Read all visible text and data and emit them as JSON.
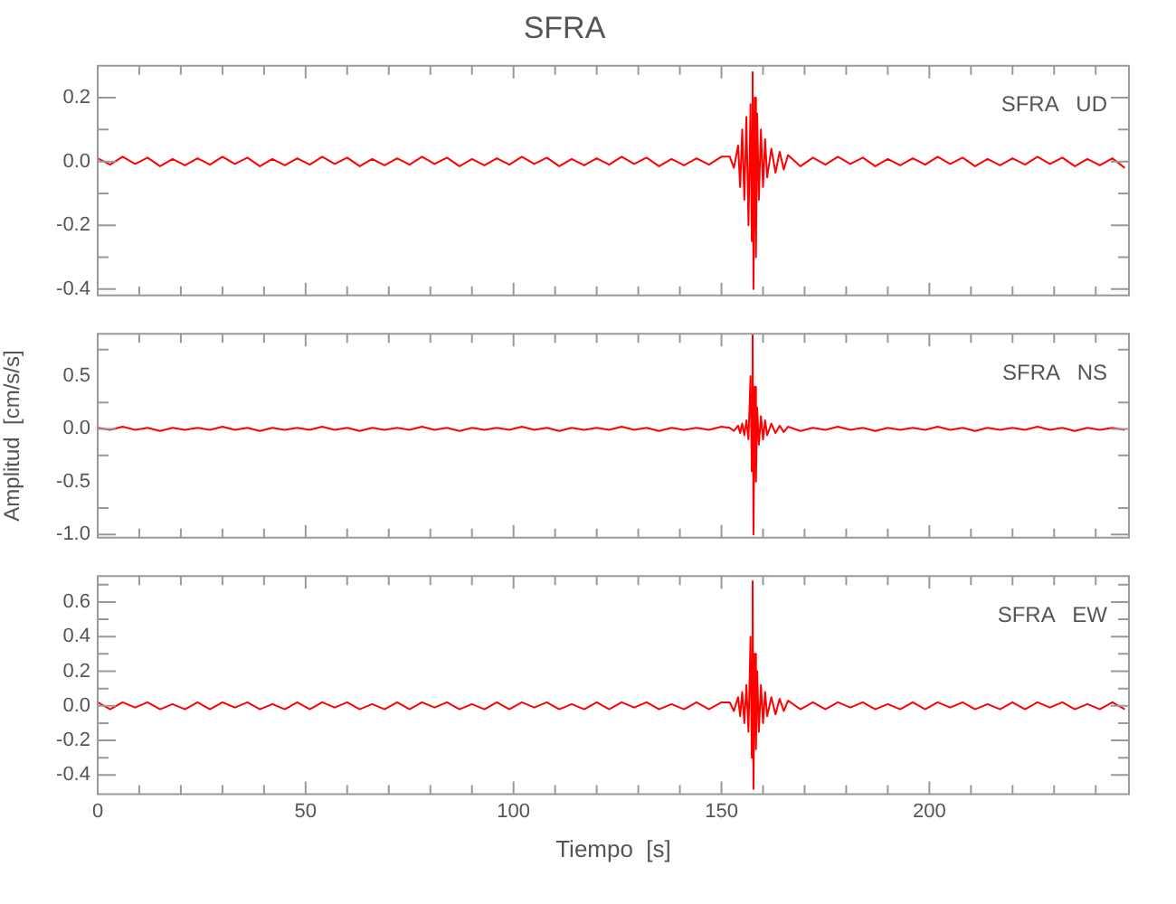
{
  "chart_data": [
    {
      "type": "line",
      "title": "SFRA",
      "annotations": [
        "SFRA   UD"
      ],
      "xlim": [
        0,
        248
      ],
      "ylim": [
        -0.42,
        0.3
      ],
      "xticks": [
        0,
        {
          "value": 10,
          "label": null
        },
        {
          "value": 20,
          "label": null
        },
        {
          "value": 30,
          "label": null
        },
        {
          "value": 40,
          "label": null
        },
        50,
        {
          "value": 60,
          "label": null
        },
        {
          "value": 70,
          "label": null
        },
        {
          "value": 80,
          "label": null
        },
        {
          "value": 90,
          "label": null
        },
        100,
        {
          "value": 110,
          "label": null
        },
        {
          "value": 120,
          "label": null
        },
        {
          "value": 130,
          "label": null
        },
        {
          "value": 140,
          "label": null
        },
        150,
        {
          "value": 160,
          "label": null
        },
        {
          "value": 170,
          "label": null
        },
        {
          "value": 180,
          "label": null
        },
        {
          "value": 190,
          "label": null
        },
        200,
        {
          "value": 210,
          "label": null
        },
        {
          "value": 220,
          "label": null
        },
        {
          "value": 230,
          "label": null
        },
        {
          "value": 240,
          "label": null
        }
      ],
      "yticks": [
        -0.4,
        {
          "value": -0.3,
          "label": null
        },
        -0.2,
        {
          "value": -0.1,
          "label": null
        },
        {
          "value": 0,
          "label": "0.0"
        },
        {
          "value": 0.1,
          "label": null
        },
        0.2
      ],
      "tick_labels": "y",
      "marker": "none",
      "x": [
        0,
        3,
        6,
        9,
        12,
        15,
        18,
        21,
        24,
        27,
        30,
        33,
        36,
        39,
        42,
        45,
        48,
        51,
        54,
        57,
        60,
        63,
        66,
        69,
        72,
        75,
        78,
        81,
        84,
        87,
        90,
        93,
        96,
        99,
        102,
        105,
        108,
        111,
        114,
        117,
        120,
        123,
        126,
        129,
        132,
        135,
        138,
        141,
        144,
        147,
        150,
        152,
        153,
        154,
        154.5,
        155,
        155.5,
        156,
        156.5,
        157,
        157.3,
        157.5,
        157.7,
        158,
        158.3,
        158.6,
        159,
        159.5,
        160,
        160.5,
        161,
        162,
        163,
        164,
        165,
        166,
        169,
        172,
        175,
        178,
        181,
        184,
        187,
        190,
        193,
        196,
        199,
        202,
        205,
        208,
        211,
        214,
        217,
        220,
        223,
        226,
        229,
        232,
        235,
        238,
        241,
        244,
        247
      ],
      "series": [
        {
          "color": "#ff0000",
          "values": [
            0.01,
            -0.01,
            0.015,
            -0.008,
            0.012,
            -0.015,
            0.008,
            -0.012,
            0.01,
            -0.01,
            0.015,
            -0.008,
            0.012,
            -0.015,
            0.008,
            -0.012,
            0.01,
            -0.01,
            0.015,
            -0.008,
            0.012,
            -0.015,
            0.008,
            -0.012,
            0.01,
            -0.01,
            0.015,
            -0.008,
            0.012,
            -0.015,
            0.008,
            -0.012,
            0.01,
            -0.01,
            0.015,
            -0.008,
            0.012,
            -0.015,
            0.008,
            -0.012,
            0.01,
            -0.01,
            0.015,
            -0.008,
            0.012,
            -0.015,
            0.008,
            -0.012,
            0.01,
            -0.01,
            0.015,
            0.015,
            -0.02,
            0.05,
            -0.08,
            0.1,
            -0.12,
            0.14,
            -0.2,
            0.18,
            -0.25,
            0.28,
            -0.4,
            0.2,
            -0.3,
            0.15,
            -0.12,
            0.1,
            -0.08,
            0.07,
            -0.05,
            0.04,
            -0.035,
            0.03,
            -0.025,
            0.02,
            -0.015,
            0.012,
            -0.01,
            0.015,
            -0.008,
            0.012,
            -0.015,
            0.008,
            -0.012,
            0.01,
            -0.01,
            0.015,
            -0.008,
            0.012,
            -0.015,
            0.008,
            -0.012,
            0.01,
            -0.01,
            0.015,
            -0.008,
            0.012,
            -0.015,
            0.008,
            -0.012,
            0.01,
            -0.02
          ]
        }
      ]
    },
    {
      "type": "line",
      "ylabel": "Amplitud  [cm/s/s]",
      "annotations": [
        "SFRA   NS"
      ],
      "xlim": [
        0,
        248
      ],
      "ylim": [
        -1.03,
        0.9
      ],
      "xticks": [
        0,
        {
          "value": 10,
          "label": null
        },
        {
          "value": 20,
          "label": null
        },
        {
          "value": 30,
          "label": null
        },
        {
          "value": 40,
          "label": null
        },
        50,
        {
          "value": 60,
          "label": null
        },
        {
          "value": 70,
          "label": null
        },
        {
          "value": 80,
          "label": null
        },
        {
          "value": 90,
          "label": null
        },
        100,
        {
          "value": 110,
          "label": null
        },
        {
          "value": 120,
          "label": null
        },
        {
          "value": 130,
          "label": null
        },
        {
          "value": 140,
          "label": null
        },
        150,
        {
          "value": 160,
          "label": null
        },
        {
          "value": 170,
          "label": null
        },
        {
          "value": 180,
          "label": null
        },
        {
          "value": 190,
          "label": null
        },
        200,
        {
          "value": 210,
          "label": null
        },
        {
          "value": 220,
          "label": null
        },
        {
          "value": 230,
          "label": null
        },
        {
          "value": 240,
          "label": null
        }
      ],
      "yticks": [
        {
          "value": -1,
          "label": "-1.0"
        },
        {
          "value": -0.75,
          "label": null
        },
        -0.5,
        {
          "value": -0.25,
          "label": null
        },
        {
          "value": 0,
          "label": "0.0"
        },
        {
          "value": 0.25,
          "label": null
        },
        0.5,
        {
          "value": 0.75,
          "label": null
        }
      ],
      "tick_labels": "y",
      "marker": "none",
      "x": [
        0,
        3,
        6,
        9,
        12,
        15,
        18,
        21,
        24,
        27,
        30,
        33,
        36,
        39,
        42,
        45,
        48,
        51,
        54,
        57,
        60,
        63,
        66,
        69,
        72,
        75,
        78,
        81,
        84,
        87,
        90,
        93,
        96,
        99,
        102,
        105,
        108,
        111,
        114,
        117,
        120,
        123,
        126,
        129,
        132,
        135,
        138,
        141,
        144,
        147,
        150,
        152,
        153,
        154,
        154.5,
        155,
        155.5,
        156,
        156.5,
        157,
        157.3,
        157.5,
        157.7,
        158,
        158.3,
        158.6,
        159,
        159.5,
        160,
        160.5,
        161,
        162,
        163,
        164,
        165,
        166,
        169,
        172,
        175,
        178,
        181,
        184,
        187,
        190,
        193,
        196,
        199,
        202,
        205,
        208,
        211,
        214,
        217,
        220,
        223,
        226,
        229,
        232,
        235,
        238,
        241,
        244,
        247
      ],
      "series": [
        {
          "color": "#ff0000",
          "values": [
            0.01,
            -0.01,
            0.02,
            -0.01,
            0.01,
            -0.02,
            0.01,
            -0.01,
            0.01,
            -0.01,
            0.02,
            -0.01,
            0.01,
            -0.02,
            0.01,
            -0.01,
            0.01,
            -0.01,
            0.02,
            -0.01,
            0.01,
            -0.02,
            0.01,
            -0.01,
            0.01,
            -0.01,
            0.02,
            -0.01,
            0.01,
            -0.02,
            0.01,
            -0.01,
            0.01,
            -0.01,
            0.02,
            -0.01,
            0.01,
            -0.02,
            0.01,
            -0.01,
            0.01,
            -0.01,
            0.02,
            -0.01,
            0.01,
            -0.02,
            0.01,
            -0.01,
            0.01,
            -0.01,
            0.02,
            0.01,
            -0.02,
            0.03,
            -0.04,
            0.05,
            -0.06,
            0.08,
            -0.1,
            0.5,
            -0.4,
            0.9,
            -1.0,
            0.4,
            -0.5,
            0.2,
            -0.15,
            0.12,
            -0.1,
            0.08,
            -0.06,
            0.05,
            -0.04,
            0.03,
            -0.03,
            0.02,
            -0.02,
            0.01,
            -0.01,
            0.02,
            -0.01,
            0.01,
            -0.02,
            0.01,
            -0.01,
            0.01,
            -0.01,
            0.02,
            -0.01,
            0.01,
            -0.02,
            0.01,
            -0.01,
            0.01,
            -0.01,
            0.02,
            -0.01,
            0.01,
            -0.02,
            0.01,
            -0.01,
            0.01,
            -0.01
          ]
        }
      ]
    },
    {
      "type": "line",
      "xlabel": "Tiempo  [s]",
      "annotations": [
        "SFRA   EW"
      ],
      "xlim": [
        0,
        248
      ],
      "ylim": [
        -0.51,
        0.75
      ],
      "xticks": [
        0,
        {
          "value": 10,
          "label": null
        },
        {
          "value": 20,
          "label": null
        },
        {
          "value": 30,
          "label": null
        },
        {
          "value": 40,
          "label": null
        },
        50,
        {
          "value": 60,
          "label": null
        },
        {
          "value": 70,
          "label": null
        },
        {
          "value": 80,
          "label": null
        },
        {
          "value": 90,
          "label": null
        },
        100,
        {
          "value": 110,
          "label": null
        },
        {
          "value": 120,
          "label": null
        },
        {
          "value": 130,
          "label": null
        },
        {
          "value": 140,
          "label": null
        },
        150,
        {
          "value": 160,
          "label": null
        },
        {
          "value": 170,
          "label": null
        },
        {
          "value": 180,
          "label": null
        },
        {
          "value": 190,
          "label": null
        },
        200,
        {
          "value": 210,
          "label": null
        },
        {
          "value": 220,
          "label": null
        },
        {
          "value": 230,
          "label": null
        },
        {
          "value": 240,
          "label": null
        }
      ],
      "yticks": [
        -0.4,
        {
          "value": -0.3,
          "label": null
        },
        -0.2,
        {
          "value": -0.1,
          "label": null
        },
        {
          "value": 0,
          "label": "0.0"
        },
        {
          "value": 0.1,
          "label": null
        },
        0.2,
        {
          "value": 0.3,
          "label": null
        },
        0.4,
        {
          "value": 0.5,
          "label": null
        },
        0.6,
        {
          "value": 0.7,
          "label": null
        }
      ],
      "marker": "none",
      "x": [
        0,
        3,
        6,
        9,
        12,
        15,
        18,
        21,
        24,
        27,
        30,
        33,
        36,
        39,
        42,
        45,
        48,
        51,
        54,
        57,
        60,
        63,
        66,
        69,
        72,
        75,
        78,
        81,
        84,
        87,
        90,
        93,
        96,
        99,
        102,
        105,
        108,
        111,
        114,
        117,
        120,
        123,
        126,
        129,
        132,
        135,
        138,
        141,
        144,
        147,
        150,
        152,
        153,
        154,
        154.5,
        155,
        155.5,
        156,
        156.5,
        157,
        157.3,
        157.5,
        157.7,
        158,
        158.3,
        158.6,
        159,
        159.5,
        160,
        160.5,
        161,
        162,
        163,
        164,
        165,
        166,
        169,
        172,
        175,
        178,
        181,
        184,
        187,
        190,
        193,
        196,
        199,
        202,
        205,
        208,
        211,
        214,
        217,
        220,
        223,
        226,
        229,
        232,
        235,
        238,
        241,
        244,
        247
      ],
      "series": [
        {
          "color": "#ff0000",
          "values": [
            0.02,
            -0.02,
            0.02,
            -0.01,
            0.02,
            -0.02,
            0.01,
            -0.02,
            0.02,
            -0.02,
            0.02,
            -0.01,
            0.02,
            -0.02,
            0.01,
            -0.02,
            0.02,
            -0.02,
            0.02,
            -0.01,
            0.02,
            -0.02,
            0.01,
            -0.02,
            0.02,
            -0.02,
            0.02,
            -0.01,
            0.02,
            -0.02,
            0.01,
            -0.02,
            0.02,
            -0.02,
            0.02,
            -0.01,
            0.02,
            -0.02,
            0.01,
            -0.02,
            0.02,
            -0.02,
            0.02,
            -0.01,
            0.02,
            -0.02,
            0.01,
            -0.02,
            0.02,
            -0.02,
            0.02,
            0.02,
            -0.03,
            0.05,
            -0.06,
            0.08,
            -0.1,
            0.12,
            -0.15,
            0.4,
            -0.3,
            0.72,
            -0.48,
            0.3,
            -0.25,
            0.2,
            -0.15,
            0.12,
            -0.1,
            0.08,
            -0.06,
            0.05,
            -0.05,
            0.04,
            -0.03,
            0.03,
            -0.02,
            0.02,
            -0.02,
            0.02,
            -0.01,
            0.02,
            -0.02,
            0.01,
            -0.02,
            0.02,
            -0.02,
            0.02,
            -0.01,
            0.02,
            -0.02,
            0.01,
            -0.02,
            0.02,
            -0.02,
            0.02,
            -0.01,
            0.02,
            -0.02,
            0.01,
            -0.02,
            0.02,
            -0.02
          ]
        }
      ]
    }
  ]
}
